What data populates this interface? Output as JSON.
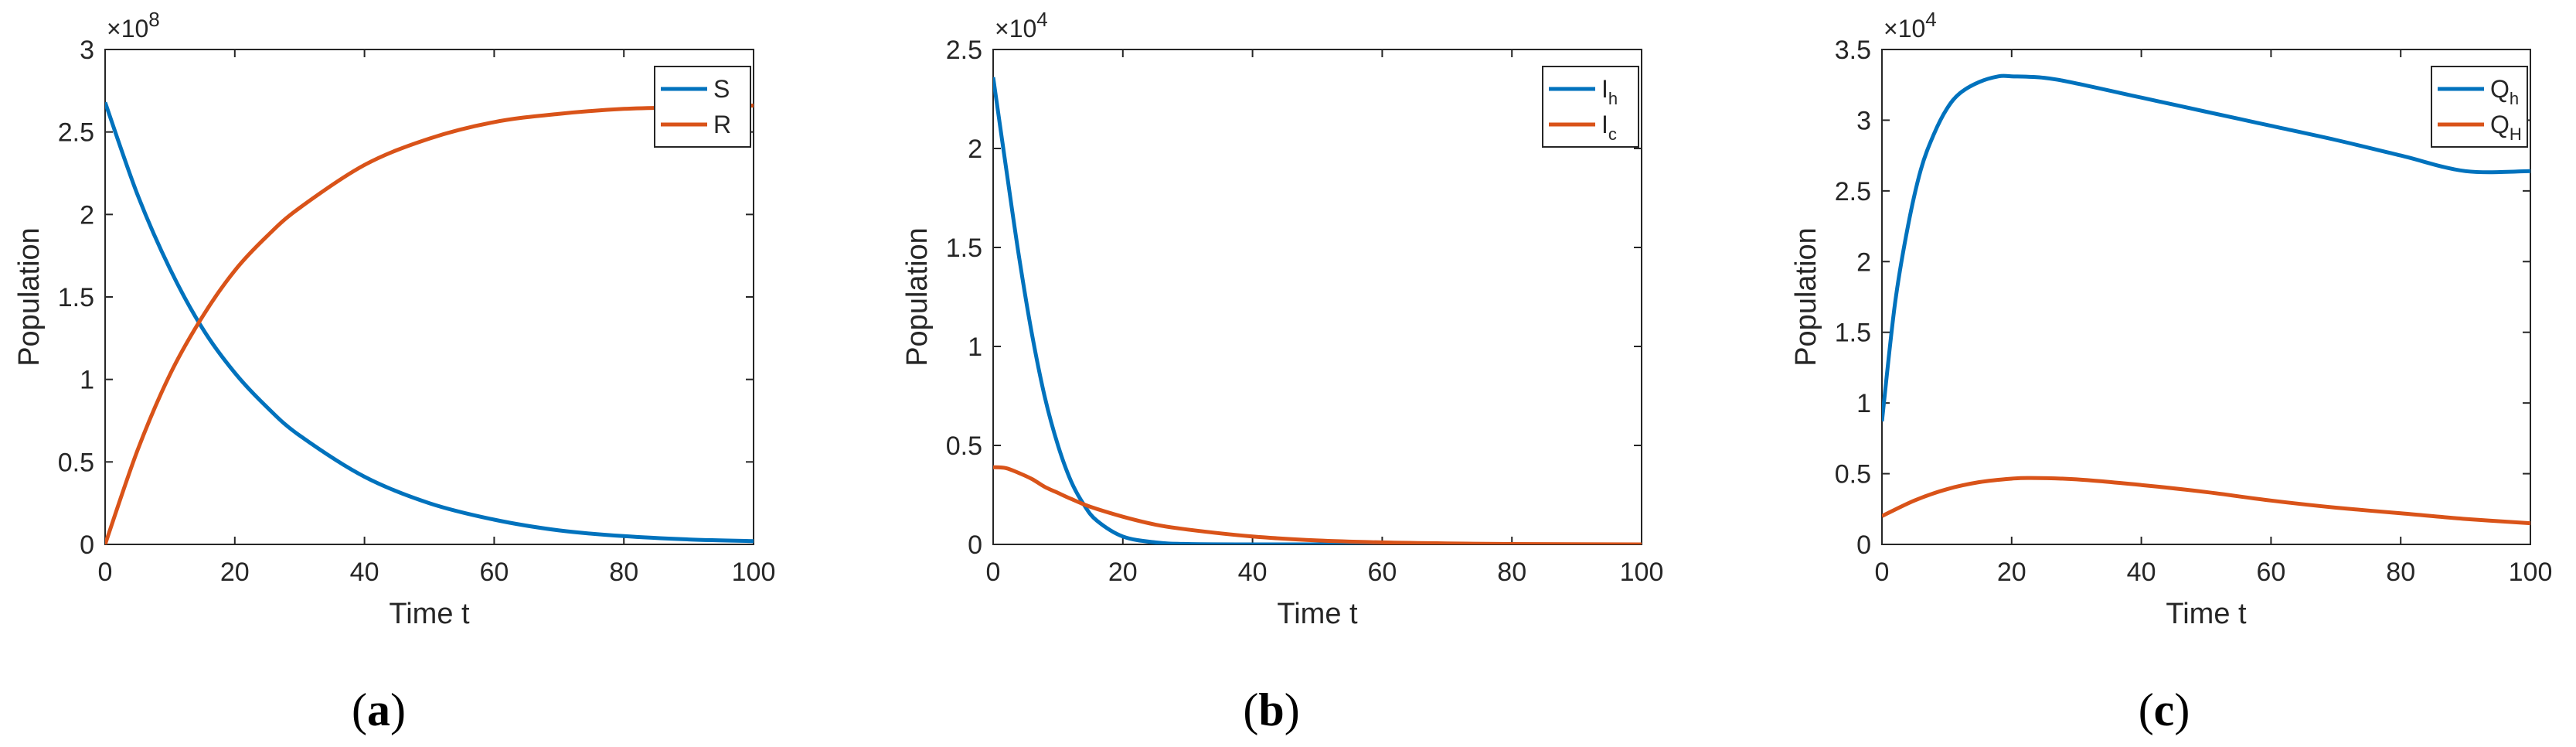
{
  "colors": {
    "blue": "#0072BD",
    "orange": "#D95319"
  },
  "chart_data": [
    {
      "type": "line",
      "panel_caption": {
        "open": "(",
        "letter": "a",
        "close": ")"
      },
      "xlabel": "Time t",
      "ylabel": "Population",
      "exponent": {
        "base": "×10",
        "power": "8"
      },
      "xlim": [
        0,
        100
      ],
      "ylim": [
        0,
        3
      ],
      "xticks": [
        "0",
        "20",
        "40",
        "60",
        "80",
        "100"
      ],
      "yticks": [
        "0",
        "0.5",
        "1",
        "1.5",
        "2",
        "2.5",
        "3"
      ],
      "legend_position": "top-right",
      "series": [
        {
          "name": "S",
          "sub": "",
          "color": "#0072BD",
          "x": [
            0,
            5,
            10,
            15,
            20,
            25,
            30,
            40,
            50,
            60,
            70,
            80,
            90,
            100
          ],
          "y": [
            2.68,
            2.12,
            1.67,
            1.31,
            1.04,
            0.83,
            0.66,
            0.41,
            0.25,
            0.15,
            0.085,
            0.05,
            0.03,
            0.02
          ]
        },
        {
          "name": "R",
          "sub": "",
          "color": "#D95319",
          "x": [
            0,
            5,
            10,
            15,
            20,
            25,
            30,
            40,
            50,
            60,
            70,
            80,
            90,
            100
          ],
          "y": [
            0,
            0.57,
            1.03,
            1.38,
            1.66,
            1.87,
            2.04,
            2.3,
            2.46,
            2.56,
            2.61,
            2.64,
            2.65,
            2.66
          ]
        }
      ]
    },
    {
      "type": "line",
      "panel_caption": {
        "open": "(",
        "letter": "b",
        "close": ")"
      },
      "xlabel": "Time t",
      "ylabel": "Population",
      "exponent": {
        "base": "×10",
        "power": "4"
      },
      "xlim": [
        0,
        100
      ],
      "ylim": [
        0,
        2.5
      ],
      "xticks": [
        "0",
        "20",
        "40",
        "60",
        "80",
        "100"
      ],
      "yticks": [
        "0",
        "0.5",
        "1",
        "1.5",
        "2",
        "2.5"
      ],
      "legend_position": "top-right",
      "series": [
        {
          "name": "I",
          "sub": "h",
          "color": "#0072BD",
          "x": [
            0,
            2,
            4,
            6,
            8,
            10,
            12,
            14,
            16,
            20,
            25,
            30,
            40,
            60,
            80,
            100
          ],
          "y": [
            2.36,
            1.9,
            1.45,
            1.06,
            0.74,
            0.5,
            0.32,
            0.2,
            0.12,
            0.04,
            0.01,
            0.002,
            0,
            0,
            0,
            0
          ]
        },
        {
          "name": "I",
          "sub": "c",
          "color": "#D95319",
          "x": [
            0,
            2,
            4,
            6,
            8,
            10,
            12,
            15,
            20,
            25,
            30,
            40,
            50,
            60,
            70,
            80,
            100
          ],
          "y": [
            0.39,
            0.385,
            0.36,
            0.33,
            0.29,
            0.26,
            0.23,
            0.19,
            0.14,
            0.1,
            0.075,
            0.04,
            0.02,
            0.01,
            0.005,
            0.002,
            0
          ]
        }
      ]
    },
    {
      "type": "line",
      "panel_caption": {
        "open": "(",
        "letter": "c",
        "close": ")"
      },
      "xlabel": "Time t",
      "ylabel": "Population",
      "exponent": {
        "base": "×10",
        "power": "4"
      },
      "xlim": [
        0,
        100
      ],
      "ylim": [
        0,
        3.5
      ],
      "xticks": [
        "0",
        "20",
        "40",
        "60",
        "80",
        "100"
      ],
      "yticks": [
        "0",
        "0.5",
        "1",
        "1.5",
        "2",
        "2.5",
        "3",
        "3.5"
      ],
      "legend_position": "top-right",
      "series": [
        {
          "name": "Q",
          "sub": "h",
          "color": "#0072BD",
          "x": [
            0,
            2,
            4,
            6,
            8,
            10,
            12,
            15,
            18,
            20,
            25,
            30,
            40,
            50,
            60,
            70,
            80,
            90,
            100
          ],
          "y": [
            0.87,
            1.7,
            2.25,
            2.65,
            2.9,
            3.08,
            3.19,
            3.27,
            3.31,
            3.31,
            3.3,
            3.26,
            3.16,
            3.06,
            2.96,
            2.86,
            2.75,
            2.64,
            2.64
          ]
        },
        {
          "name": "Q",
          "sub": "H",
          "color": "#D95319",
          "x": [
            0,
            5,
            10,
            15,
            20,
            23,
            30,
            40,
            50,
            60,
            70,
            80,
            90,
            100
          ],
          "y": [
            0.2,
            0.31,
            0.39,
            0.44,
            0.465,
            0.47,
            0.46,
            0.42,
            0.37,
            0.31,
            0.26,
            0.22,
            0.18,
            0.15
          ]
        }
      ]
    }
  ]
}
